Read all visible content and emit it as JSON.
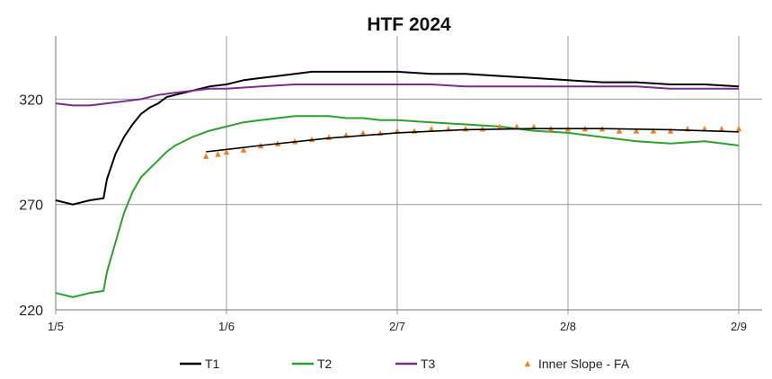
{
  "chart_data": {
    "type": "line",
    "title": "HTF  2024",
    "xlabel": "",
    "ylabel": "",
    "x_ticks": [
      "1/5",
      "1/6",
      "2/7",
      "2/8",
      "2/9"
    ],
    "xlim": [
      0,
      4
    ],
    "y_ticks": [
      "220",
      "270",
      "320"
    ],
    "ylim": [
      220,
      350
    ],
    "grid": true,
    "legend_position": "bottom",
    "series": [
      {
        "name": "T1",
        "color": "#000000",
        "style": "line",
        "x": [
          0,
          0.1,
          0.2,
          0.28,
          0.3,
          0.35,
          0.4,
          0.45,
          0.5,
          0.55,
          0.6,
          0.65,
          0.7,
          0.8,
          0.9,
          1.0,
          1.1,
          1.2,
          1.3,
          1.4,
          1.5,
          1.6,
          1.7,
          1.8,
          1.9,
          2.0,
          2.2,
          2.4,
          2.6,
          2.8,
          3.0,
          3.2,
          3.4,
          3.6,
          3.8,
          4.0
        ],
        "values": [
          272,
          270,
          272,
          273,
          282,
          294,
          302,
          308,
          313,
          316,
          318,
          321,
          322,
          324,
          326,
          327,
          329,
          330,
          331,
          332,
          333,
          333,
          333,
          333,
          333,
          333,
          332,
          332,
          331,
          330,
          329,
          328,
          328,
          327,
          327,
          326
        ]
      },
      {
        "name": "T2",
        "color": "#2ca02c",
        "style": "line",
        "x": [
          0,
          0.1,
          0.2,
          0.28,
          0.3,
          0.35,
          0.4,
          0.45,
          0.5,
          0.55,
          0.6,
          0.65,
          0.7,
          0.8,
          0.9,
          1.0,
          1.1,
          1.2,
          1.3,
          1.4,
          1.5,
          1.6,
          1.7,
          1.8,
          1.9,
          2.0,
          2.2,
          2.4,
          2.6,
          2.8,
          3.0,
          3.2,
          3.4,
          3.6,
          3.8,
          4.0
        ],
        "values": [
          228,
          226,
          228,
          229,
          238,
          252,
          266,
          276,
          283,
          287,
          291,
          295,
          298,
          302,
          305,
          307,
          309,
          310,
          311,
          312,
          312,
          312,
          311,
          311,
          310,
          310,
          309,
          308,
          307,
          305,
          304,
          302,
          300,
          299,
          300,
          298
        ]
      },
      {
        "name": "T3",
        "color": "#7b2c8c",
        "style": "line",
        "x": [
          0,
          0.1,
          0.2,
          0.3,
          0.4,
          0.5,
          0.6,
          0.7,
          0.8,
          0.9,
          1.0,
          1.2,
          1.4,
          1.6,
          1.8,
          2.0,
          2.2,
          2.4,
          2.6,
          2.8,
          3.0,
          3.2,
          3.4,
          3.6,
          3.8,
          4.0
        ],
        "values": [
          318,
          317,
          317,
          318,
          319,
          320,
          322,
          323,
          324,
          325,
          325,
          326,
          327,
          327,
          327,
          327,
          327,
          326,
          326,
          326,
          326,
          326,
          326,
          325,
          325,
          325
        ]
      },
      {
        "name": "Inner Slope - FA",
        "color": "#f07f1e",
        "style": "markers",
        "x": [
          0.88,
          0.95,
          1.0,
          1.1,
          1.2,
          1.3,
          1.4,
          1.5,
          1.6,
          1.7,
          1.8,
          1.9,
          2.0,
          2.1,
          2.2,
          2.3,
          2.4,
          2.5,
          2.6,
          2.7,
          2.8,
          2.9,
          3.0,
          3.1,
          3.2,
          3.3,
          3.4,
          3.5,
          3.6,
          3.7,
          3.8,
          3.9,
          4.0
        ],
        "values": [
          293,
          294,
          295,
          296,
          298,
          299,
          300,
          301,
          302,
          303,
          304,
          304,
          305,
          305,
          306,
          306,
          306,
          306,
          307,
          307,
          307,
          306,
          306,
          306,
          306,
          305,
          305,
          305,
          305,
          306,
          306,
          306,
          306
        ]
      }
    ],
    "trendline": {
      "color": "#000000",
      "x": [
        0.88,
        1.2,
        1.6,
        2.0,
        2.4,
        2.8,
        3.2,
        3.6,
        4.0
      ],
      "values": [
        295,
        298,
        301.5,
        304,
        305.5,
        306,
        306,
        305.5,
        304.5
      ]
    }
  }
}
